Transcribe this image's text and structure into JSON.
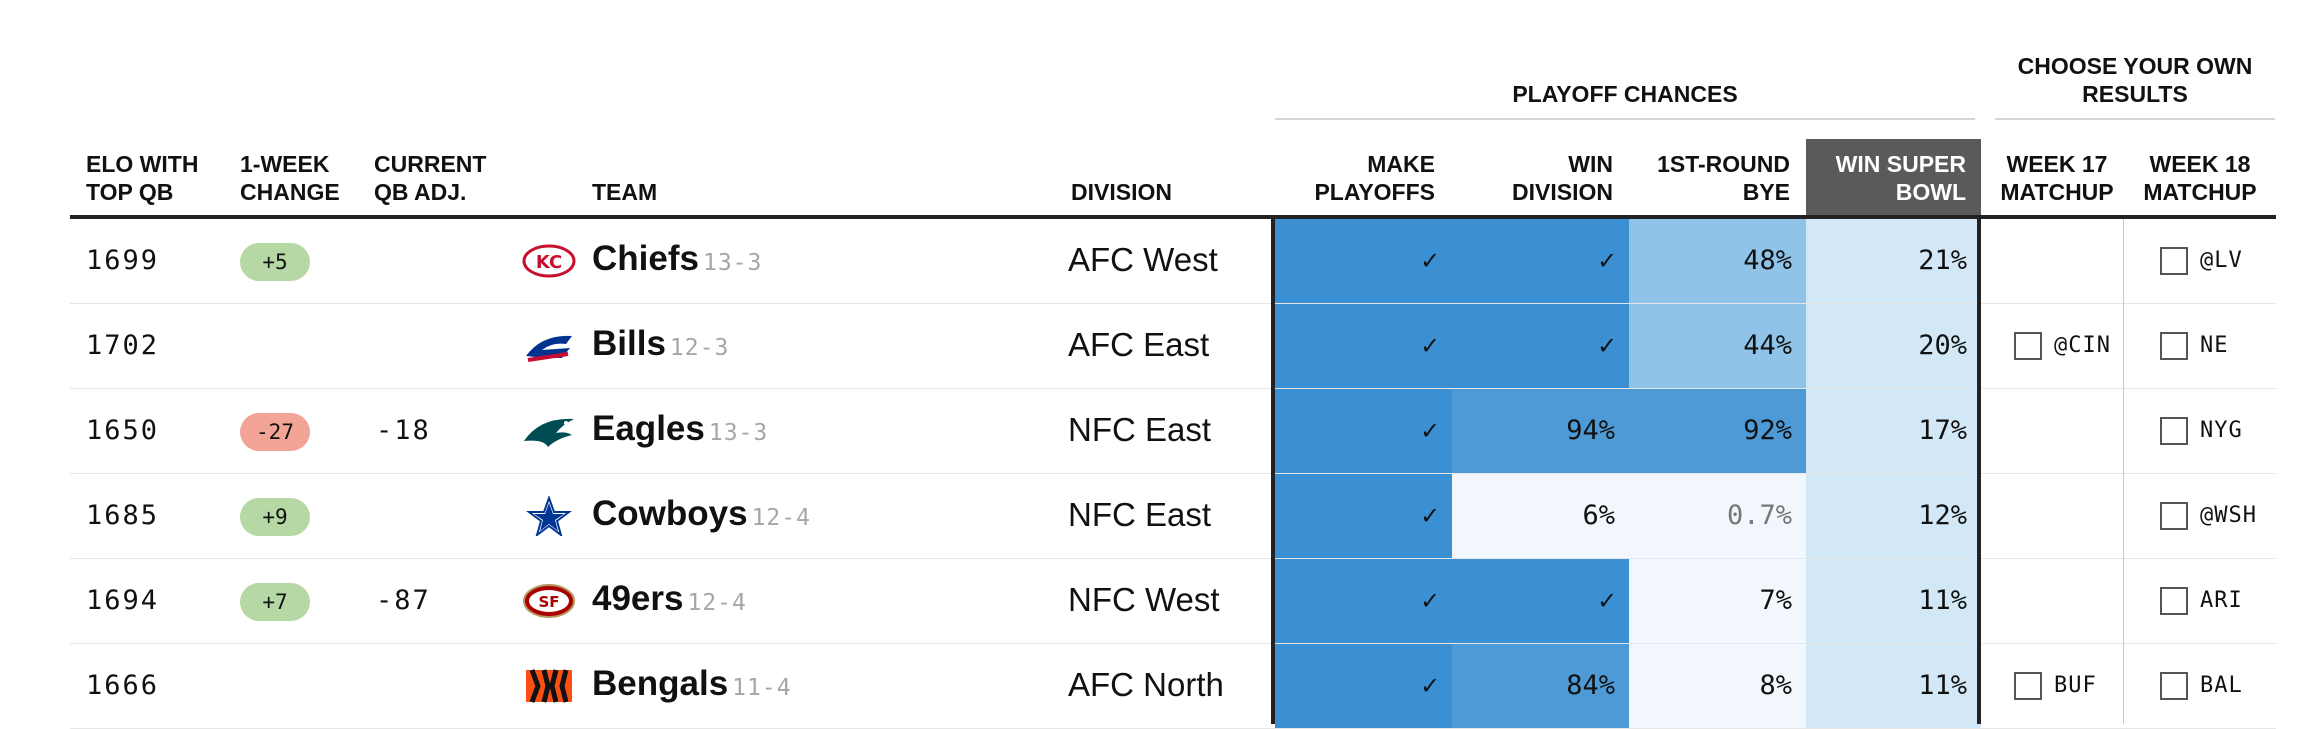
{
  "headers": {
    "elo": "ELO WITH TOP QB",
    "change": "1-WEEK CHANGE",
    "qb_adj": "CURRENT QB ADJ.",
    "team": "TEAM",
    "division": "DIVISION",
    "playoff_group": "PLAYOFF CHANCES",
    "make_playoffs": "MAKE PLAYOFFS",
    "win_division": "WIN DIVISION",
    "first_round_bye": "1ST-ROUND BYE",
    "win_super_bowl": "WIN SUPER BOWL",
    "choose_group": "CHOOSE YOUR OWN RESULTS",
    "week17": "WEEK 17 MATCHUP",
    "week18": "WEEK 18 MATCHUP"
  },
  "colors": {
    "dark_blue": "#3b8fd3",
    "light_blue": "#8fc3e8",
    "pale_blue": "#d3e8f6",
    "positive_change": "#b5d8a4",
    "negative_change": "#f2a597",
    "selected_header": "#5a5a5a"
  },
  "rows": [
    {
      "elo": "1699",
      "change": "+5",
      "change_sign": "pos",
      "qb_adj": "",
      "logo": "chiefs-logo-icon",
      "team": "Chiefs",
      "record": "13-3",
      "division": "AFC West",
      "make_playoffs": "✓",
      "win_division": "✓",
      "first_round_bye": "48%",
      "win_super_bowl": "21%",
      "week17": "",
      "week18": "@LV"
    },
    {
      "elo": "1702",
      "change": "",
      "change_sign": "",
      "qb_adj": "",
      "logo": "bills-logo-icon",
      "team": "Bills",
      "record": "12-3",
      "division": "AFC East",
      "make_playoffs": "✓",
      "win_division": "✓",
      "first_round_bye": "44%",
      "win_super_bowl": "20%",
      "week17": "@CIN",
      "week18": "NE"
    },
    {
      "elo": "1650",
      "change": "-27",
      "change_sign": "neg",
      "qb_adj": "-18",
      "logo": "eagles-logo-icon",
      "team": "Eagles",
      "record": "13-3",
      "division": "NFC East",
      "make_playoffs": "✓",
      "win_division": "94%",
      "first_round_bye": "92%",
      "win_super_bowl": "17%",
      "week17": "",
      "week18": "NYG"
    },
    {
      "elo": "1685",
      "change": "+9",
      "change_sign": "pos",
      "qb_adj": "",
      "logo": "cowboys-logo-icon",
      "team": "Cowboys",
      "record": "12-4",
      "division": "NFC East",
      "make_playoffs": "✓",
      "win_division": "6%",
      "first_round_bye": "0.7%",
      "win_super_bowl": "12%",
      "week17": "",
      "week18": "@WSH"
    },
    {
      "elo": "1694",
      "change": "+7",
      "change_sign": "pos",
      "qb_adj": "-87",
      "logo": "49ers-logo-icon",
      "team": "49ers",
      "record": "12-4",
      "division": "NFC West",
      "make_playoffs": "✓",
      "win_division": "✓",
      "first_round_bye": "7%",
      "win_super_bowl": "11%",
      "week17": "",
      "week18": "ARI"
    },
    {
      "elo": "1666",
      "change": "",
      "change_sign": "",
      "qb_adj": "",
      "logo": "bengals-logo-icon",
      "team": "Bengals",
      "record": "11-4",
      "division": "AFC North",
      "make_playoffs": "✓",
      "win_division": "84%",
      "first_round_bye": "8%",
      "win_super_bowl": "11%",
      "week17": "BUF",
      "week18": "BAL"
    }
  ]
}
